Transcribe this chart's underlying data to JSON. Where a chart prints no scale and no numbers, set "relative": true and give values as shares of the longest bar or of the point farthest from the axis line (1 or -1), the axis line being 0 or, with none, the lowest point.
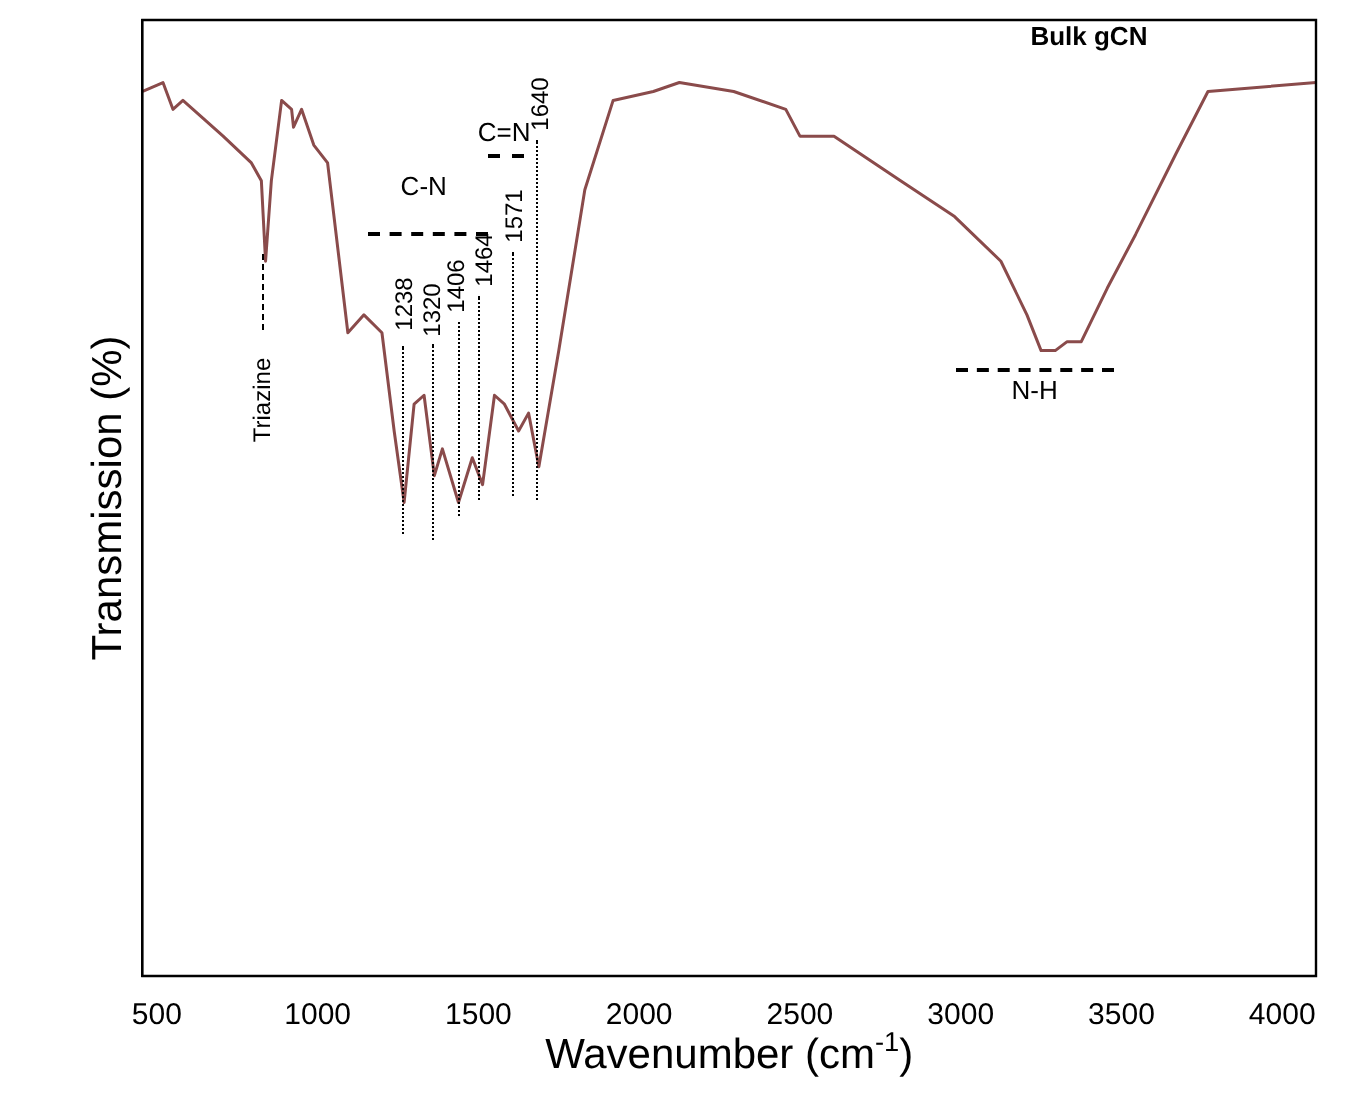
{
  "chart_data": {
    "type": "line",
    "xlabel": "Wavenumber (cm$^{-1}$)",
    "ylabel": "Transmission (%)",
    "relative": true,
    "xlim": [
      455,
      4105
    ],
    "xticks": [
      500,
      1000,
      1500,
      2000,
      2500,
      3000,
      3500,
      4000
    ],
    "grid": false,
    "legend": false,
    "marker": "none",
    "line_style": "solid",
    "series": [
      {
        "color": "#8a4b4b",
        "x": [
          456,
          519,
          550,
          581,
          644,
          706,
          794,
          825,
          838,
          856,
          888,
          919,
          925,
          950,
          988,
          1031,
          1094,
          1144,
          1200,
          1238,
          1269,
          1300,
          1331,
          1363,
          1388,
          1438,
          1481,
          1513,
          1550,
          1581,
          1625,
          1656,
          1688,
          1750,
          1831,
          1919,
          2044,
          2125,
          2294,
          2456,
          2500,
          2606,
          2813,
          2981,
          3125,
          3206,
          3250,
          3294,
          3331,
          3375,
          3456,
          3544,
          3669,
          3769,
          4105
        ],
        "values": [
          0.99,
          1.0,
          0.97,
          0.98,
          0.96,
          0.94,
          0.91,
          0.89,
          0.8,
          0.89,
          0.98,
          0.97,
          0.95,
          0.97,
          0.93,
          0.91,
          0.72,
          0.74,
          0.72,
          0.61,
          0.53,
          0.64,
          0.65,
          0.56,
          0.59,
          0.53,
          0.58,
          0.55,
          0.65,
          0.64,
          0.61,
          0.63,
          0.57,
          0.7,
          0.88,
          0.98,
          0.99,
          1.0,
          0.99,
          0.97,
          0.94,
          0.94,
          0.89,
          0.85,
          0.8,
          0.74,
          0.7,
          0.7,
          0.71,
          0.71,
          0.77,
          0.83,
          0.92,
          0.99,
          1.0
        ]
      }
    ],
    "annotations": [
      "Triazine",
      "1238",
      "1320",
      "1406",
      "1464",
      "1571",
      "1640",
      "C-N",
      "C=N",
      "N-H",
      "Bulk gCN"
    ]
  }
}
